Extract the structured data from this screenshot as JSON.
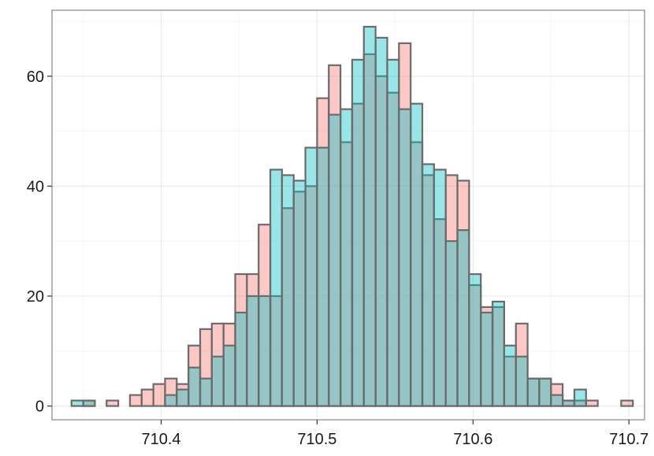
{
  "chart_data": {
    "type": "bar",
    "subtype": "overlaid-histogram",
    "title": "",
    "xlabel": "",
    "ylabel": "",
    "x_range": [
      0.33,
      0.71
    ],
    "y_range": [
      -2.5,
      72
    ],
    "x_ticks": [
      0.4,
      0.5,
      0.6,
      0.7
    ],
    "x_tick_labels": [
      "710.4",
      "710.5",
      "710.6",
      "710.7"
    ],
    "y_ticks": [
      0,
      20,
      40,
      60
    ],
    "y_tick_labels": [
      "0",
      "20",
      "40",
      "60"
    ],
    "bin_start": 0.3425,
    "bin_width": 0.0075,
    "grid": true,
    "legend": "none",
    "colors": {
      "series_a_fill": "#f8766d",
      "series_b_fill": "#00bfc4",
      "bar_stroke": "#6b6b6b",
      "panel_border": "#9e9e9e",
      "grid_major": "#ebebeb",
      "grid_minor": "#f5f5f5"
    },
    "series": [
      {
        "values": [
          0,
          1,
          0,
          1,
          0,
          2,
          3,
          4,
          5,
          4,
          11,
          14,
          15,
          15,
          24,
          24,
          33,
          20,
          36,
          39,
          40,
          56,
          62,
          48,
          55,
          64,
          60,
          57,
          66,
          48,
          42,
          34,
          42,
          41,
          22,
          18,
          18,
          9,
          15,
          5,
          5,
          4,
          1,
          1,
          1,
          0,
          0,
          1
        ]
      },
      {
        "values": [
          1,
          1,
          0,
          0,
          0,
          0,
          0,
          0,
          2,
          3,
          7,
          5,
          9,
          11,
          17,
          20,
          20,
          43,
          42,
          41,
          47,
          47,
          53,
          54,
          63,
          69,
          67,
          63,
          54,
          55,
          44,
          43,
          30,
          32,
          24,
          17,
          19,
          11,
          9,
          5,
          5,
          2,
          1,
          3,
          0,
          0,
          0,
          0
        ]
      }
    ]
  }
}
